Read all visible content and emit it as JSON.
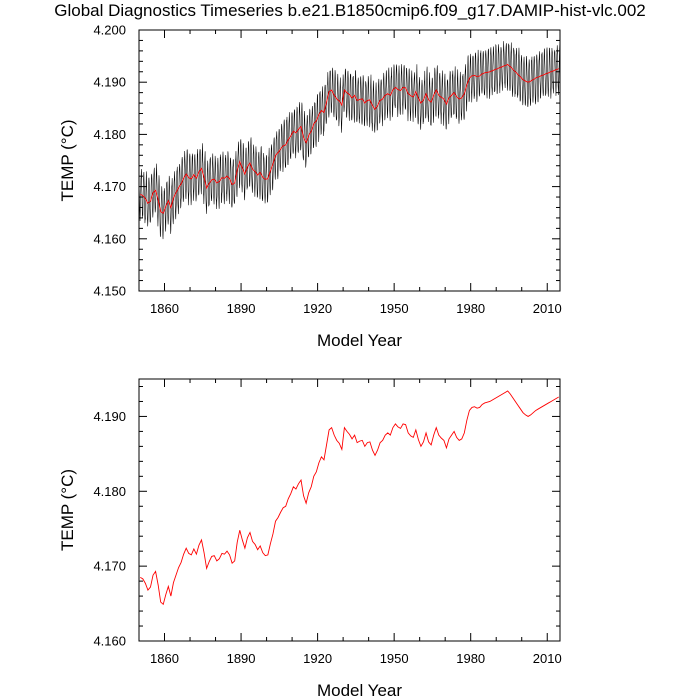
{
  "title": "Global Diagnostics Timeseries b.e21.B1850cmip6.f09_g17.DAMIP-hist-vlc.002",
  "colors": {
    "monthly": "#000000",
    "annual": "#ff0000",
    "axis": "#000000"
  },
  "chart_data": [
    {
      "type": "line",
      "xlabel": "Model Year",
      "ylabel": "TEMP (°C)",
      "xlim": [
        1850,
        2015
      ],
      "ylim": [
        4.15,
        4.2
      ],
      "xticks": [
        1860,
        1890,
        1920,
        1950,
        1980,
        2010
      ],
      "yticks": [
        "4.150",
        "4.160",
        "4.170",
        "4.180",
        "4.190",
        "4.200"
      ],
      "series": [
        {
          "style": "monthly",
          "color": "#000000",
          "envelope_half_width": 0.0045
        },
        {
          "style": "annual",
          "color": "#ff0000",
          "x_start": 1850,
          "values": [
            4.1685,
            4.1683,
            4.1677,
            4.1668,
            4.1672,
            4.1688,
            4.1693,
            4.1675,
            4.1652,
            4.1649,
            4.1662,
            4.1673,
            4.166,
            4.1678,
            4.1688,
            4.1698,
            4.1705,
            4.1716,
            4.1724,
            4.1717,
            4.1715,
            4.1723,
            4.1716,
            4.1728,
            4.1735,
            4.1718,
            4.1697,
            4.1706,
            4.1713,
            4.1714,
            4.1707,
            4.171,
            4.1717,
            4.1716,
            4.172,
            4.1715,
            4.1704,
            4.1707,
            4.1732,
            4.1748,
            4.1735,
            4.1724,
            4.1738,
            4.1745,
            4.1733,
            4.1729,
            4.1722,
            4.1727,
            4.1718,
            4.1714,
            4.1715,
            4.173,
            4.1743,
            4.176,
            4.1765,
            4.1772,
            4.1778,
            4.178,
            4.179,
            4.1797,
            4.1806,
            4.1803,
            4.181,
            4.1815,
            4.1794,
            4.1784,
            4.1798,
            4.1806,
            4.182,
            4.1826,
            4.1838,
            4.1846,
            4.1842,
            4.1862,
            4.1882,
            4.1885,
            4.1875,
            4.1868,
            4.1864,
            4.1856,
            4.1885,
            4.188,
            4.1876,
            4.187,
            4.1875,
            4.1865,
            4.1867,
            4.1868,
            4.186,
            4.1865,
            4.1866,
            4.1855,
            4.1848,
            4.1855,
            4.1865,
            4.1868,
            4.1875,
            4.1878,
            4.1875,
            4.1885,
            4.189,
            4.1886,
            4.1884,
            4.189,
            4.1889,
            4.1878,
            4.1874,
            4.1872,
            4.1882,
            4.1869,
            4.186,
            4.1866,
            4.1878,
            4.1866,
            4.1862,
            4.1875,
            4.1885,
            4.1875,
            4.1871,
            4.1868,
            4.1858,
            4.187,
            4.1875,
            4.188,
            4.1872,
            4.1868,
            4.187,
            4.1878,
            4.1895,
            4.1908,
            4.1912,
            4.1913,
            4.1911,
            4.1912,
            4.1916,
            4.1918,
            4.1919,
            4.192,
            4.1922,
            4.1924,
            4.1926,
            4.1928,
            4.193,
            4.1932,
            4.1934,
            4.193,
            4.1925,
            4.192,
            4.1915,
            4.191,
            4.1905,
            4.1902,
            4.19,
            4.1902,
            4.1905,
            4.1908,
            4.191,
            4.1912,
            4.1914,
            4.1916,
            4.1918,
            4.192,
            4.1922,
            4.1924,
            4.1926
          ]
        }
      ]
    },
    {
      "type": "line",
      "xlabel": "Model Year",
      "ylabel": "TEMP (°C)",
      "xlim": [
        1850,
        2015
      ],
      "ylim": [
        4.16,
        4.195
      ],
      "xticks": [
        1860,
        1890,
        1920,
        1950,
        1980,
        2010
      ],
      "yticks": [
        "4.160",
        "4.170",
        "4.180",
        "4.190"
      ],
      "series": [
        {
          "style": "annual",
          "color": "#ff0000",
          "x_start": 1850,
          "values": [
            4.1685,
            4.1683,
            4.1677,
            4.1668,
            4.1672,
            4.1688,
            4.1693,
            4.1675,
            4.1652,
            4.1649,
            4.1662,
            4.1673,
            4.166,
            4.1678,
            4.1688,
            4.1698,
            4.1705,
            4.1716,
            4.1724,
            4.1717,
            4.1715,
            4.1723,
            4.1716,
            4.1728,
            4.1735,
            4.1718,
            4.1697,
            4.1706,
            4.1713,
            4.1714,
            4.1707,
            4.171,
            4.1717,
            4.1716,
            4.172,
            4.1715,
            4.1704,
            4.1707,
            4.1732,
            4.1748,
            4.1735,
            4.1724,
            4.1738,
            4.1745,
            4.1733,
            4.1729,
            4.1722,
            4.1727,
            4.1718,
            4.1714,
            4.1715,
            4.173,
            4.1743,
            4.176,
            4.1765,
            4.1772,
            4.1778,
            4.178,
            4.179,
            4.1797,
            4.1806,
            4.1803,
            4.181,
            4.1815,
            4.1794,
            4.1784,
            4.1798,
            4.1806,
            4.182,
            4.1826,
            4.1838,
            4.1846,
            4.1842,
            4.1862,
            4.1882,
            4.1885,
            4.1875,
            4.1868,
            4.1864,
            4.1856,
            4.1885,
            4.188,
            4.1876,
            4.187,
            4.1875,
            4.1865,
            4.1867,
            4.1868,
            4.186,
            4.1865,
            4.1866,
            4.1855,
            4.1848,
            4.1855,
            4.1865,
            4.1868,
            4.1875,
            4.1878,
            4.1875,
            4.1885,
            4.189,
            4.1886,
            4.1884,
            4.189,
            4.1889,
            4.1878,
            4.1874,
            4.1872,
            4.1882,
            4.1869,
            4.186,
            4.1866,
            4.1878,
            4.1866,
            4.1862,
            4.1875,
            4.1885,
            4.1875,
            4.1871,
            4.1868,
            4.1858,
            4.187,
            4.1875,
            4.188,
            4.1872,
            4.1868,
            4.187,
            4.1878,
            4.1895,
            4.1908,
            4.1912,
            4.1913,
            4.1911,
            4.1912,
            4.1916,
            4.1918,
            4.1919,
            4.192,
            4.1922,
            4.1924,
            4.1926,
            4.1928,
            4.193,
            4.1932,
            4.1934,
            4.193,
            4.1925,
            4.192,
            4.1915,
            4.191,
            4.1905,
            4.1902,
            4.19,
            4.1902,
            4.1905,
            4.1908,
            4.191,
            4.1912,
            4.1914,
            4.1916,
            4.1918,
            4.192,
            4.1922,
            4.1924,
            4.1926
          ]
        }
      ]
    }
  ]
}
